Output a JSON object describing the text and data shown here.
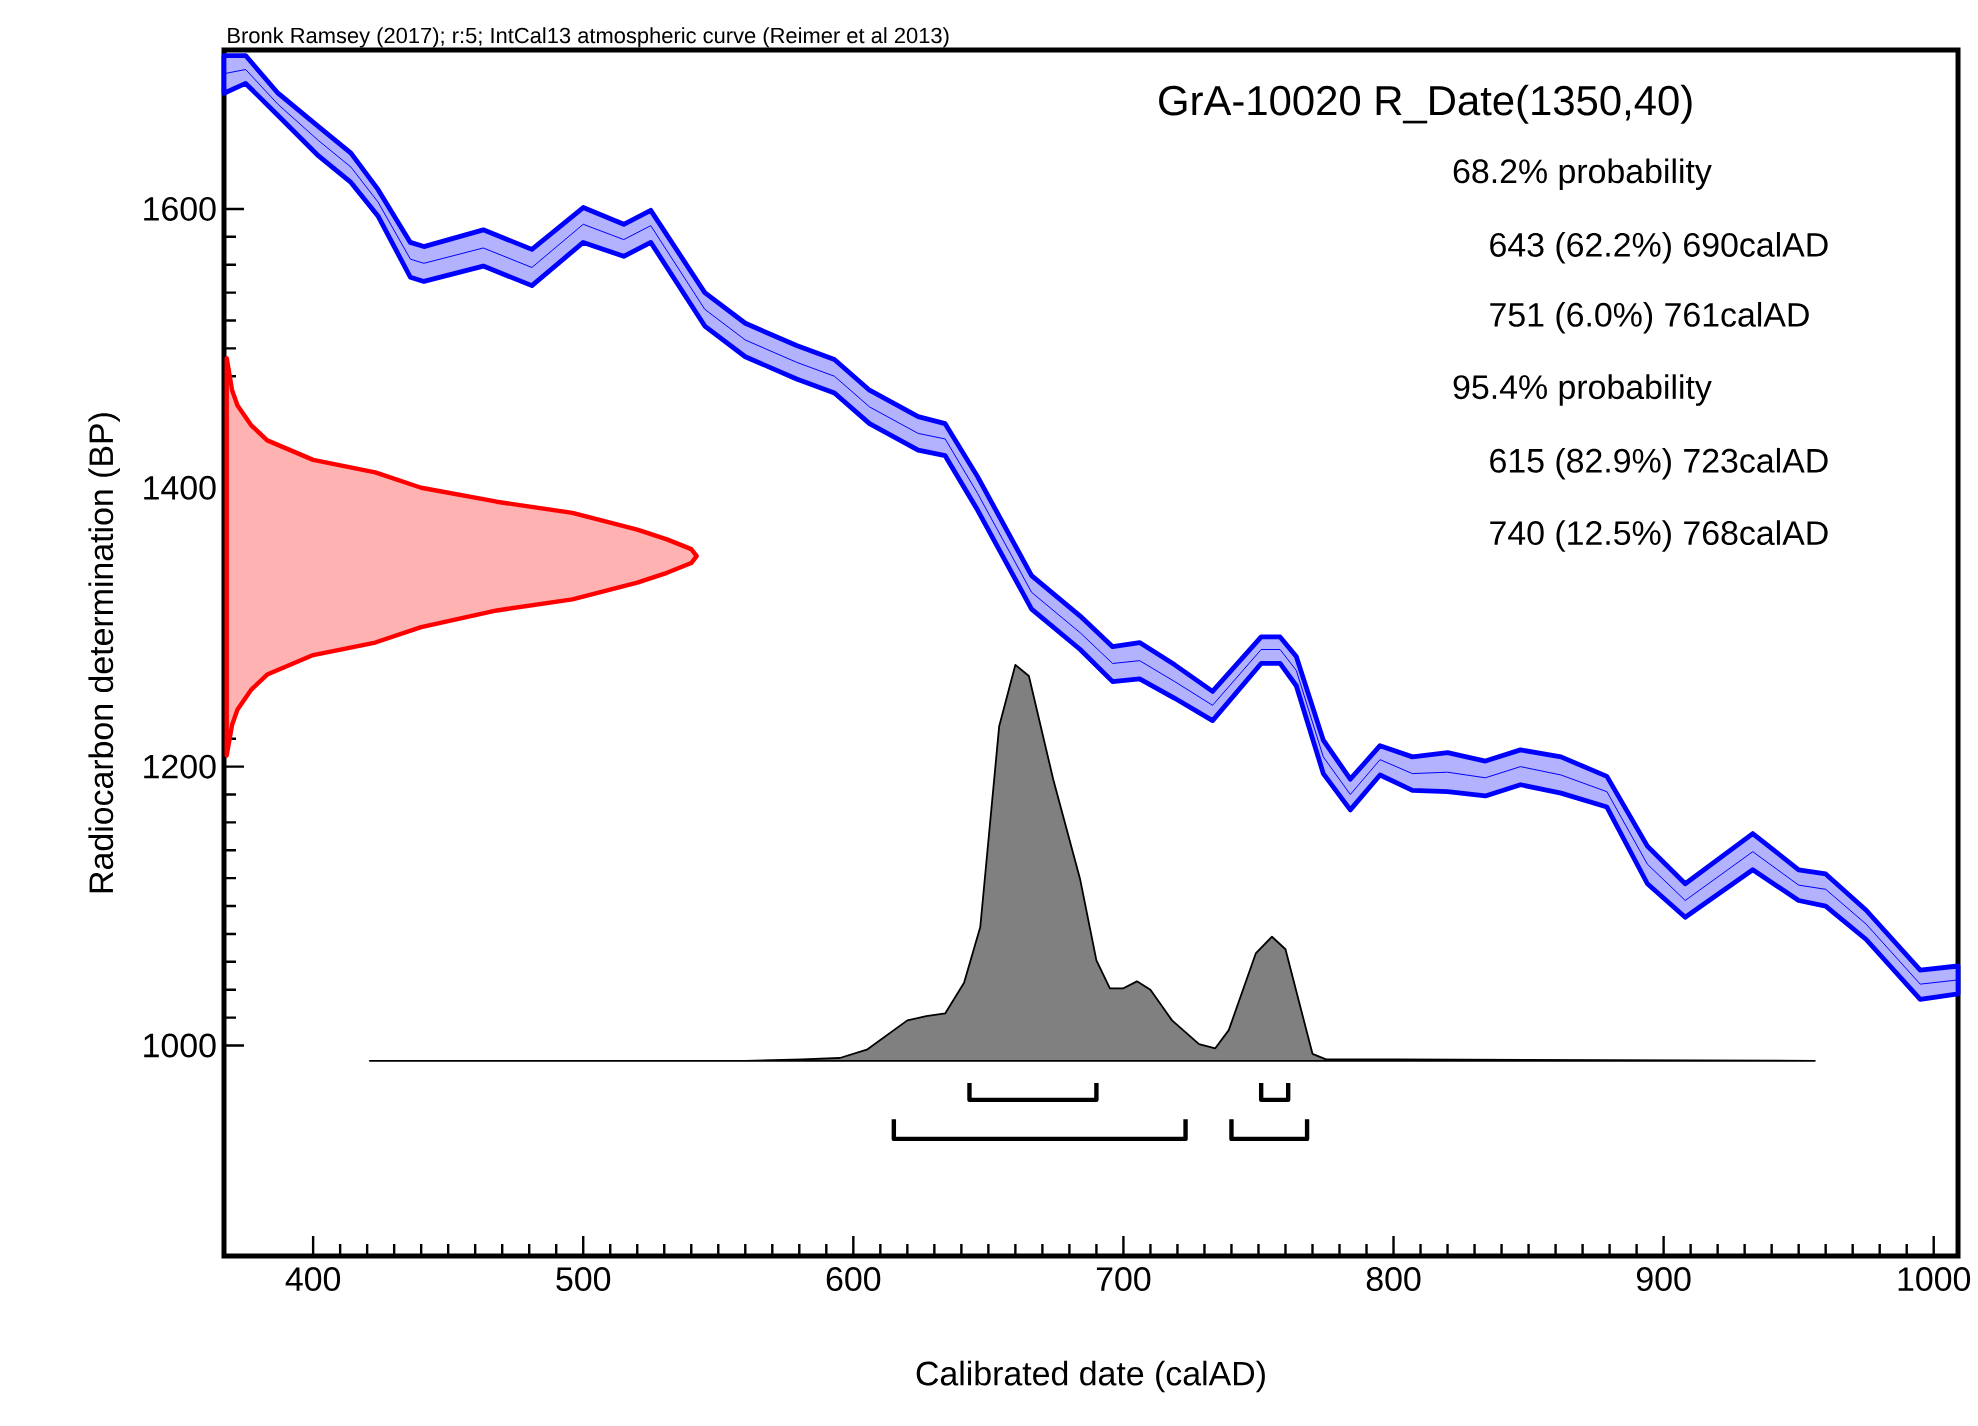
{
  "chart_data": {
    "type": "line",
    "title": "GrA-10020 R_Date(1350,40)",
    "xlabel": "Calibrated date (calAD)",
    "ylabel": "Radiocarbon determination (BP)",
    "xlim": [
      367,
      1009
    ],
    "ylim": [
      849,
      1714
    ],
    "xticks": [
      400,
      500,
      600,
      700,
      800,
      900,
      1000
    ],
    "yticks": [
      1000,
      1200,
      1400,
      1600
    ],
    "grid": false,
    "marker": "none",
    "annotations": [
      "Bronk Ramsey (2017); r:5; IntCal13 atmospheric curve (Reimer et al 2013)",
      "68.2% probability",
      "643 (62.2%) 690calAD",
      "751 (6.0%) 761calAD",
      "95.4% probability",
      "615 (82.9%) 723calAD",
      "740 (12.5%) 768calAD"
    ],
    "series": [
      {
        "color": "#0000ff",
        "x": [
          367,
          375,
          387,
          402,
          414,
          424,
          436,
          441,
          463,
          481,
          500,
          515,
          525,
          545,
          560,
          579,
          593,
          606,
          624,
          634,
          646,
          666,
          684,
          696,
          706,
          719,
          733,
          751,
          758,
          764,
          774,
          784,
          795,
          807,
          820,
          834,
          847,
          862,
          879,
          894,
          908,
          933,
          950,
          960,
          975,
          995,
          1009
        ],
        "upper": [
          1710,
          1710,
          1683,
          1659,
          1640,
          1614,
          1576,
          1573,
          1585,
          1571,
          1601,
          1589,
          1599,
          1540,
          1518,
          1502,
          1492,
          1470,
          1451,
          1446,
          1408,
          1337,
          1308,
          1286,
          1289,
          1273,
          1254,
          1293,
          1293,
          1279,
          1219,
          1191,
          1215,
          1207,
          1210,
          1204,
          1212,
          1207,
          1193,
          1143,
          1116,
          1152,
          1126,
          1123,
          1097,
          1054,
          1057
        ],
        "lower": [
          1683,
          1690,
          1667,
          1638,
          1619,
          1595,
          1551,
          1548,
          1559,
          1545,
          1576,
          1566,
          1576,
          1516,
          1494,
          1478,
          1468,
          1446,
          1427,
          1423,
          1384,
          1313,
          1284,
          1261,
          1263,
          1249,
          1233,
          1274,
          1274,
          1258,
          1195,
          1169,
          1194,
          1183,
          1182,
          1179,
          1187,
          1181,
          1171,
          1116,
          1092,
          1126,
          1104,
          1100,
          1076,
          1033,
          1037
        ],
        "values": [
          1697,
          1700,
          1675,
          1649,
          1630,
          1605,
          1564,
          1561,
          1572,
          1558,
          1589,
          1578,
          1588,
          1528,
          1506,
          1490,
          1480,
          1458,
          1439,
          1435,
          1396,
          1325,
          1296,
          1274,
          1276,
          1261,
          1244,
          1284,
          1284,
          1269,
          1207,
          1180,
          1205,
          1195,
          1196,
          1192,
          1200,
          1194,
          1182,
          1130,
          1104,
          1139,
          1115,
          1112,
          1087,
          1044,
          1047
        ]
      },
      {
        "type": "area",
        "color": "#ff0000",
        "x": [
          368,
          370,
          372,
          377,
          383,
          400,
          423,
          440,
          468,
          496,
          520,
          531,
          540,
          542,
          540,
          531,
          520,
          496,
          468,
          440,
          423,
          400,
          383,
          377,
          372,
          370,
          368
        ],
        "values": [
          1493,
          1470,
          1459,
          1445,
          1434,
          1420,
          1411,
          1400,
          1390,
          1382,
          1370,
          1363,
          1356,
          1351,
          1346,
          1339,
          1332,
          1320,
          1312,
          1300,
          1289,
          1280,
          1266,
          1255,
          1241,
          1230,
          1208
        ]
      },
      {
        "type": "area",
        "color": "#808080",
        "x": [
          421,
          560,
          581,
          595,
          605,
          620,
          627,
          634,
          641,
          647,
          654,
          660,
          665,
          674,
          684,
          690,
          695,
          700,
          705,
          710,
          718,
          728,
          734,
          739,
          749,
          755,
          760,
          770,
          775,
          800,
          956
        ],
        "values": [
          989,
          989,
          990,
          991,
          997,
          1018,
          1021,
          1023,
          1045,
          1085,
          1229,
          1273,
          1265,
          1191,
          1119,
          1061,
          1041,
          1041,
          1046,
          1040,
          1018,
          1001,
          998,
          1011,
          1066,
          1078,
          1069,
          994,
          990,
          990,
          989
        ]
      },
      {
        "color": "#000000",
        "x": [
          643,
          643,
          690,
          690
        ],
        "values": [
          973,
          961,
          961,
          973
        ]
      },
      {
        "color": "#000000",
        "x": [
          751,
          751,
          761,
          761
        ],
        "values": [
          973,
          961,
          961,
          973
        ]
      },
      {
        "color": "#000000",
        "x": [
          615,
          615,
          723,
          723
        ],
        "values": [
          947,
          933,
          933,
          947
        ]
      },
      {
        "color": "#000000",
        "x": [
          740,
          740,
          768,
          768
        ],
        "values": [
          947,
          933,
          933,
          947
        ]
      }
    ]
  }
}
